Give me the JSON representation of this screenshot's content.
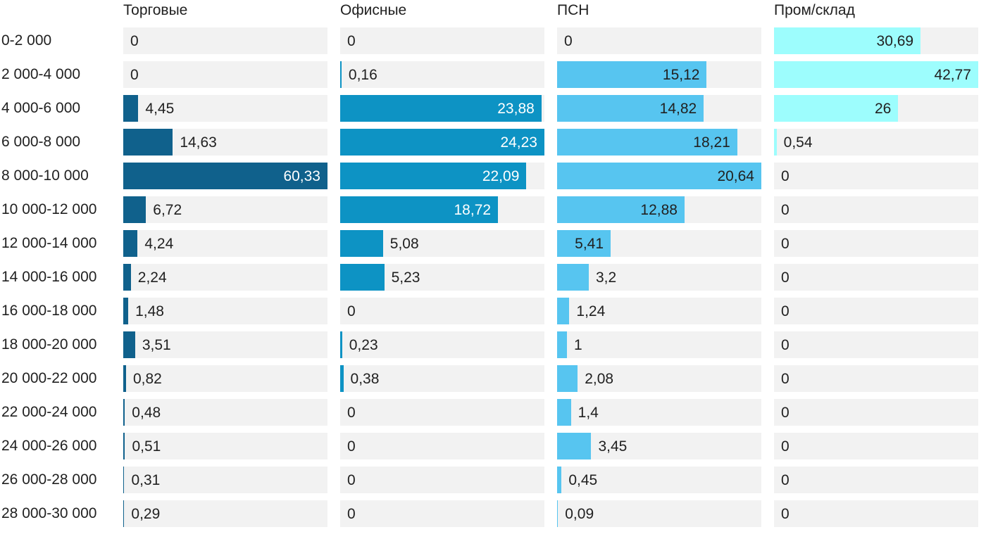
{
  "chart_data": {
    "type": "bar",
    "orientation": "horizontal",
    "title": "",
    "xlabel": "",
    "ylabel": "",
    "grid": false,
    "legend_position": "column-headers-top",
    "track_color": "#f2f2f2",
    "text_color": "#212121",
    "background_color": "#ffffff",
    "value_decimal_separator": ",",
    "categories": [
      "0-2 000",
      "2 000-4 000",
      "4 000-6 000",
      "6 000-8 000",
      "8 000-10 000",
      "10 000-12 000",
      "12 000-14 000",
      "14 000-16 000",
      "16 000-18 000",
      "18 000-20 000",
      "20 000-22 000",
      "22 000-24 000",
      "24 000-26 000",
      "26 000-28 000",
      "28 000-30 000"
    ],
    "series": [
      {
        "name": "Торговые",
        "color": "#10618c",
        "inside_label_color": "#ffffff",
        "scale_max": 60.33,
        "values": [
          0,
          0,
          4.45,
          14.63,
          60.33,
          6.72,
          4.24,
          2.24,
          1.48,
          3.51,
          0.82,
          0.48,
          0.51,
          0.31,
          0.29
        ],
        "labels": [
          "0",
          "0",
          "4,45",
          "14,63",
          "60,33",
          "6,72",
          "4,24",
          "2,24",
          "1,48",
          "3,51",
          "0,82",
          "0,48",
          "0,51",
          "0,31",
          "0,29"
        ]
      },
      {
        "name": "Офисные",
        "color": "#0d93c4",
        "inside_label_color": "#ffffff",
        "scale_max": 24.23,
        "values": [
          0,
          0.16,
          23.88,
          24.23,
          22.09,
          18.72,
          5.08,
          5.23,
          0,
          0.23,
          0.38,
          0,
          0,
          0,
          0
        ],
        "labels": [
          "0",
          "0,16",
          "23,88",
          "24,23",
          "22,09",
          "18,72",
          "5,08",
          "5,23",
          "0",
          "0,23",
          "0,38",
          "0",
          "0",
          "0",
          "0"
        ]
      },
      {
        "name": "ПСН",
        "color": "#57c5f0",
        "inside_label_color": "#212121",
        "scale_max": 20.64,
        "values": [
          0,
          15.12,
          14.82,
          18.21,
          20.64,
          12.88,
          5.41,
          3.2,
          1.24,
          1,
          2.08,
          1.4,
          3.45,
          0.45,
          0.09
        ],
        "labels": [
          "0",
          "15,12",
          "14,82",
          "18,21",
          "20,64",
          "12,88",
          "5,41",
          "3,2",
          "1,24",
          "1",
          "2,08",
          "1,4",
          "3,45",
          "0,45",
          "0,09"
        ]
      },
      {
        "name": "Пром/склад",
        "color": "#9dfdfd",
        "inside_label_color": "#212121",
        "scale_max": 42.77,
        "values": [
          30.69,
          42.77,
          26,
          0.54,
          0,
          0,
          0,
          0,
          0,
          0,
          0,
          0,
          0,
          0,
          0
        ],
        "labels": [
          "30,69",
          "42,77",
          "26",
          "0,54",
          "0",
          "0",
          "0",
          "0",
          "0",
          "0",
          "0",
          "0",
          "0",
          "0",
          "0"
        ]
      }
    ]
  }
}
